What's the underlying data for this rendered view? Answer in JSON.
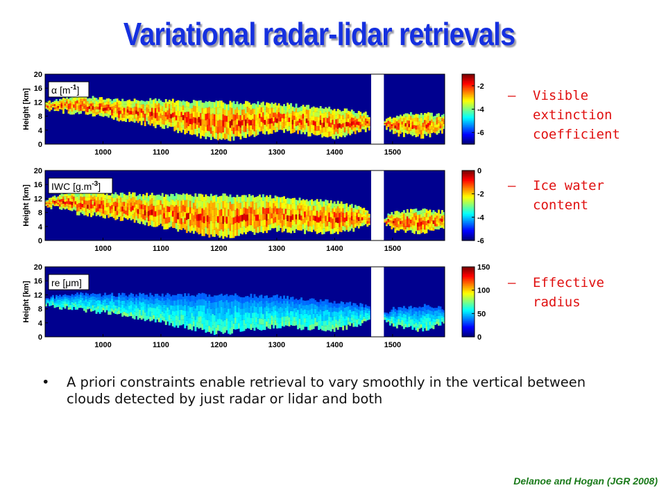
{
  "title": "Variational radar-lidar retrievals",
  "panels": [
    {
      "label_base": "α [m",
      "label_sup": "-1",
      "label_end": "]",
      "colorbar_ticks": [
        "-2",
        "-4",
        "-6"
      ],
      "legend_dash": "–",
      "legend": "Visible extinction coefficient"
    },
    {
      "label_base": "IWC [g.m",
      "label_sup": "-3",
      "label_end": "]",
      "colorbar_ticks": [
        "0",
        "-2",
        "-4",
        "-6"
      ],
      "legend_dash": "–",
      "legend": "Ice water content"
    },
    {
      "label_base": "re [μm]",
      "label_sup": "",
      "label_end": "",
      "colorbar_ticks": [
        "150",
        "100",
        "50",
        "0"
      ],
      "legend_dash": "–",
      "legend": "Effective radius"
    }
  ],
  "bullet": {
    "dot": "•",
    "text": "A priori constraints enable retrieval to vary smoothly in the vertical between clouds detected by just radar or lidar and both"
  },
  "citation": "Delanoe and Hogan (JGR 2008)",
  "colors": {
    "title": "#1530e0",
    "legend": "#e01010",
    "citation": "#1a7a1a",
    "background_field": "#00008f"
  },
  "chart_data": [
    {
      "type": "heatmap",
      "quantity": "α [m-1]",
      "xlabel": "",
      "ylabel": "Height [km]",
      "x_ticks": [
        1000,
        1100,
        1200,
        1300,
        1400,
        1500
      ],
      "y_ticks": [
        0,
        4,
        8,
        12,
        16,
        20
      ],
      "xlim": [
        900,
        1590
      ],
      "ylim": [
        0,
        20
      ],
      "data_gap": [
        1463,
        1485
      ],
      "colorbar": {
        "ticks": [
          -2,
          -4,
          -6
        ],
        "range": [
          -7,
          -1
        ]
      },
      "cloud_top_km": [
        [
          900,
          12
        ],
        [
          950,
          14
        ],
        [
          1000,
          13
        ],
        [
          1100,
          12.5
        ],
        [
          1200,
          12
        ],
        [
          1300,
          11.5
        ],
        [
          1400,
          10
        ],
        [
          1450,
          9
        ],
        [
          1480,
          6
        ],
        [
          1500,
          8
        ],
        [
          1550,
          9
        ],
        [
          1590,
          8
        ]
      ],
      "cloud_base_km": [
        [
          900,
          10
        ],
        [
          950,
          9
        ],
        [
          1000,
          8
        ],
        [
          1100,
          5
        ],
        [
          1200,
          1
        ],
        [
          1300,
          4
        ],
        [
          1400,
          2
        ],
        [
          1450,
          4
        ],
        [
          1480,
          6
        ],
        [
          1500,
          3
        ],
        [
          1550,
          2
        ],
        [
          1590,
          4
        ]
      ]
    },
    {
      "type": "heatmap",
      "quantity": "IWC [g.m-3]",
      "xlabel": "",
      "ylabel": "Height [km]",
      "x_ticks": [
        1000,
        1100,
        1200,
        1300,
        1400,
        1500
      ],
      "y_ticks": [
        0,
        4,
        8,
        12,
        16,
        20
      ],
      "xlim": [
        900,
        1590
      ],
      "ylim": [
        0,
        20
      ],
      "data_gap": [
        1463,
        1485
      ],
      "colorbar": {
        "ticks": [
          0,
          -2,
          -4,
          -6
        ],
        "range": [
          -6,
          0
        ]
      },
      "cloud_top_km": [
        [
          900,
          12
        ],
        [
          950,
          14
        ],
        [
          1000,
          13.5
        ],
        [
          1100,
          13
        ],
        [
          1200,
          13
        ],
        [
          1300,
          12.5
        ],
        [
          1400,
          11
        ],
        [
          1450,
          9
        ],
        [
          1480,
          6
        ],
        [
          1500,
          8
        ],
        [
          1550,
          9
        ],
        [
          1590,
          8
        ]
      ],
      "cloud_base_km": [
        [
          900,
          10
        ],
        [
          950,
          8
        ],
        [
          1000,
          7
        ],
        [
          1100,
          4
        ],
        [
          1200,
          1
        ],
        [
          1300,
          3
        ],
        [
          1400,
          2
        ],
        [
          1450,
          4
        ],
        [
          1480,
          6
        ],
        [
          1500,
          3
        ],
        [
          1550,
          2
        ],
        [
          1590,
          4
        ]
      ]
    },
    {
      "type": "heatmap",
      "quantity": "re [μm]",
      "xlabel": "",
      "ylabel": "Height [km]",
      "x_ticks": [
        1000,
        1100,
        1200,
        1300,
        1400,
        1500
      ],
      "y_ticks": [
        0,
        4,
        8,
        12,
        16,
        20
      ],
      "xlim": [
        900,
        1590
      ],
      "ylim": [
        0,
        20
      ],
      "data_gap": [
        1463,
        1485
      ],
      "colorbar": {
        "ticks": [
          150,
          100,
          50,
          0
        ],
        "range": [
          0,
          150
        ]
      },
      "cloud_top_km": [
        [
          900,
          11
        ],
        [
          950,
          12.5
        ],
        [
          1000,
          12
        ],
        [
          1100,
          12
        ],
        [
          1200,
          12
        ],
        [
          1300,
          11.5
        ],
        [
          1400,
          10
        ],
        [
          1450,
          9
        ],
        [
          1480,
          6
        ],
        [
          1500,
          8
        ],
        [
          1550,
          9
        ],
        [
          1590,
          8
        ]
      ],
      "cloud_base_km": [
        [
          900,
          9
        ],
        [
          950,
          8
        ],
        [
          1000,
          7
        ],
        [
          1100,
          4
        ],
        [
          1200,
          1
        ],
        [
          1300,
          3
        ],
        [
          1400,
          2
        ],
        [
          1450,
          4
        ],
        [
          1480,
          6
        ],
        [
          1500,
          3
        ],
        [
          1550,
          2
        ],
        [
          1590,
          4
        ]
      ]
    }
  ]
}
